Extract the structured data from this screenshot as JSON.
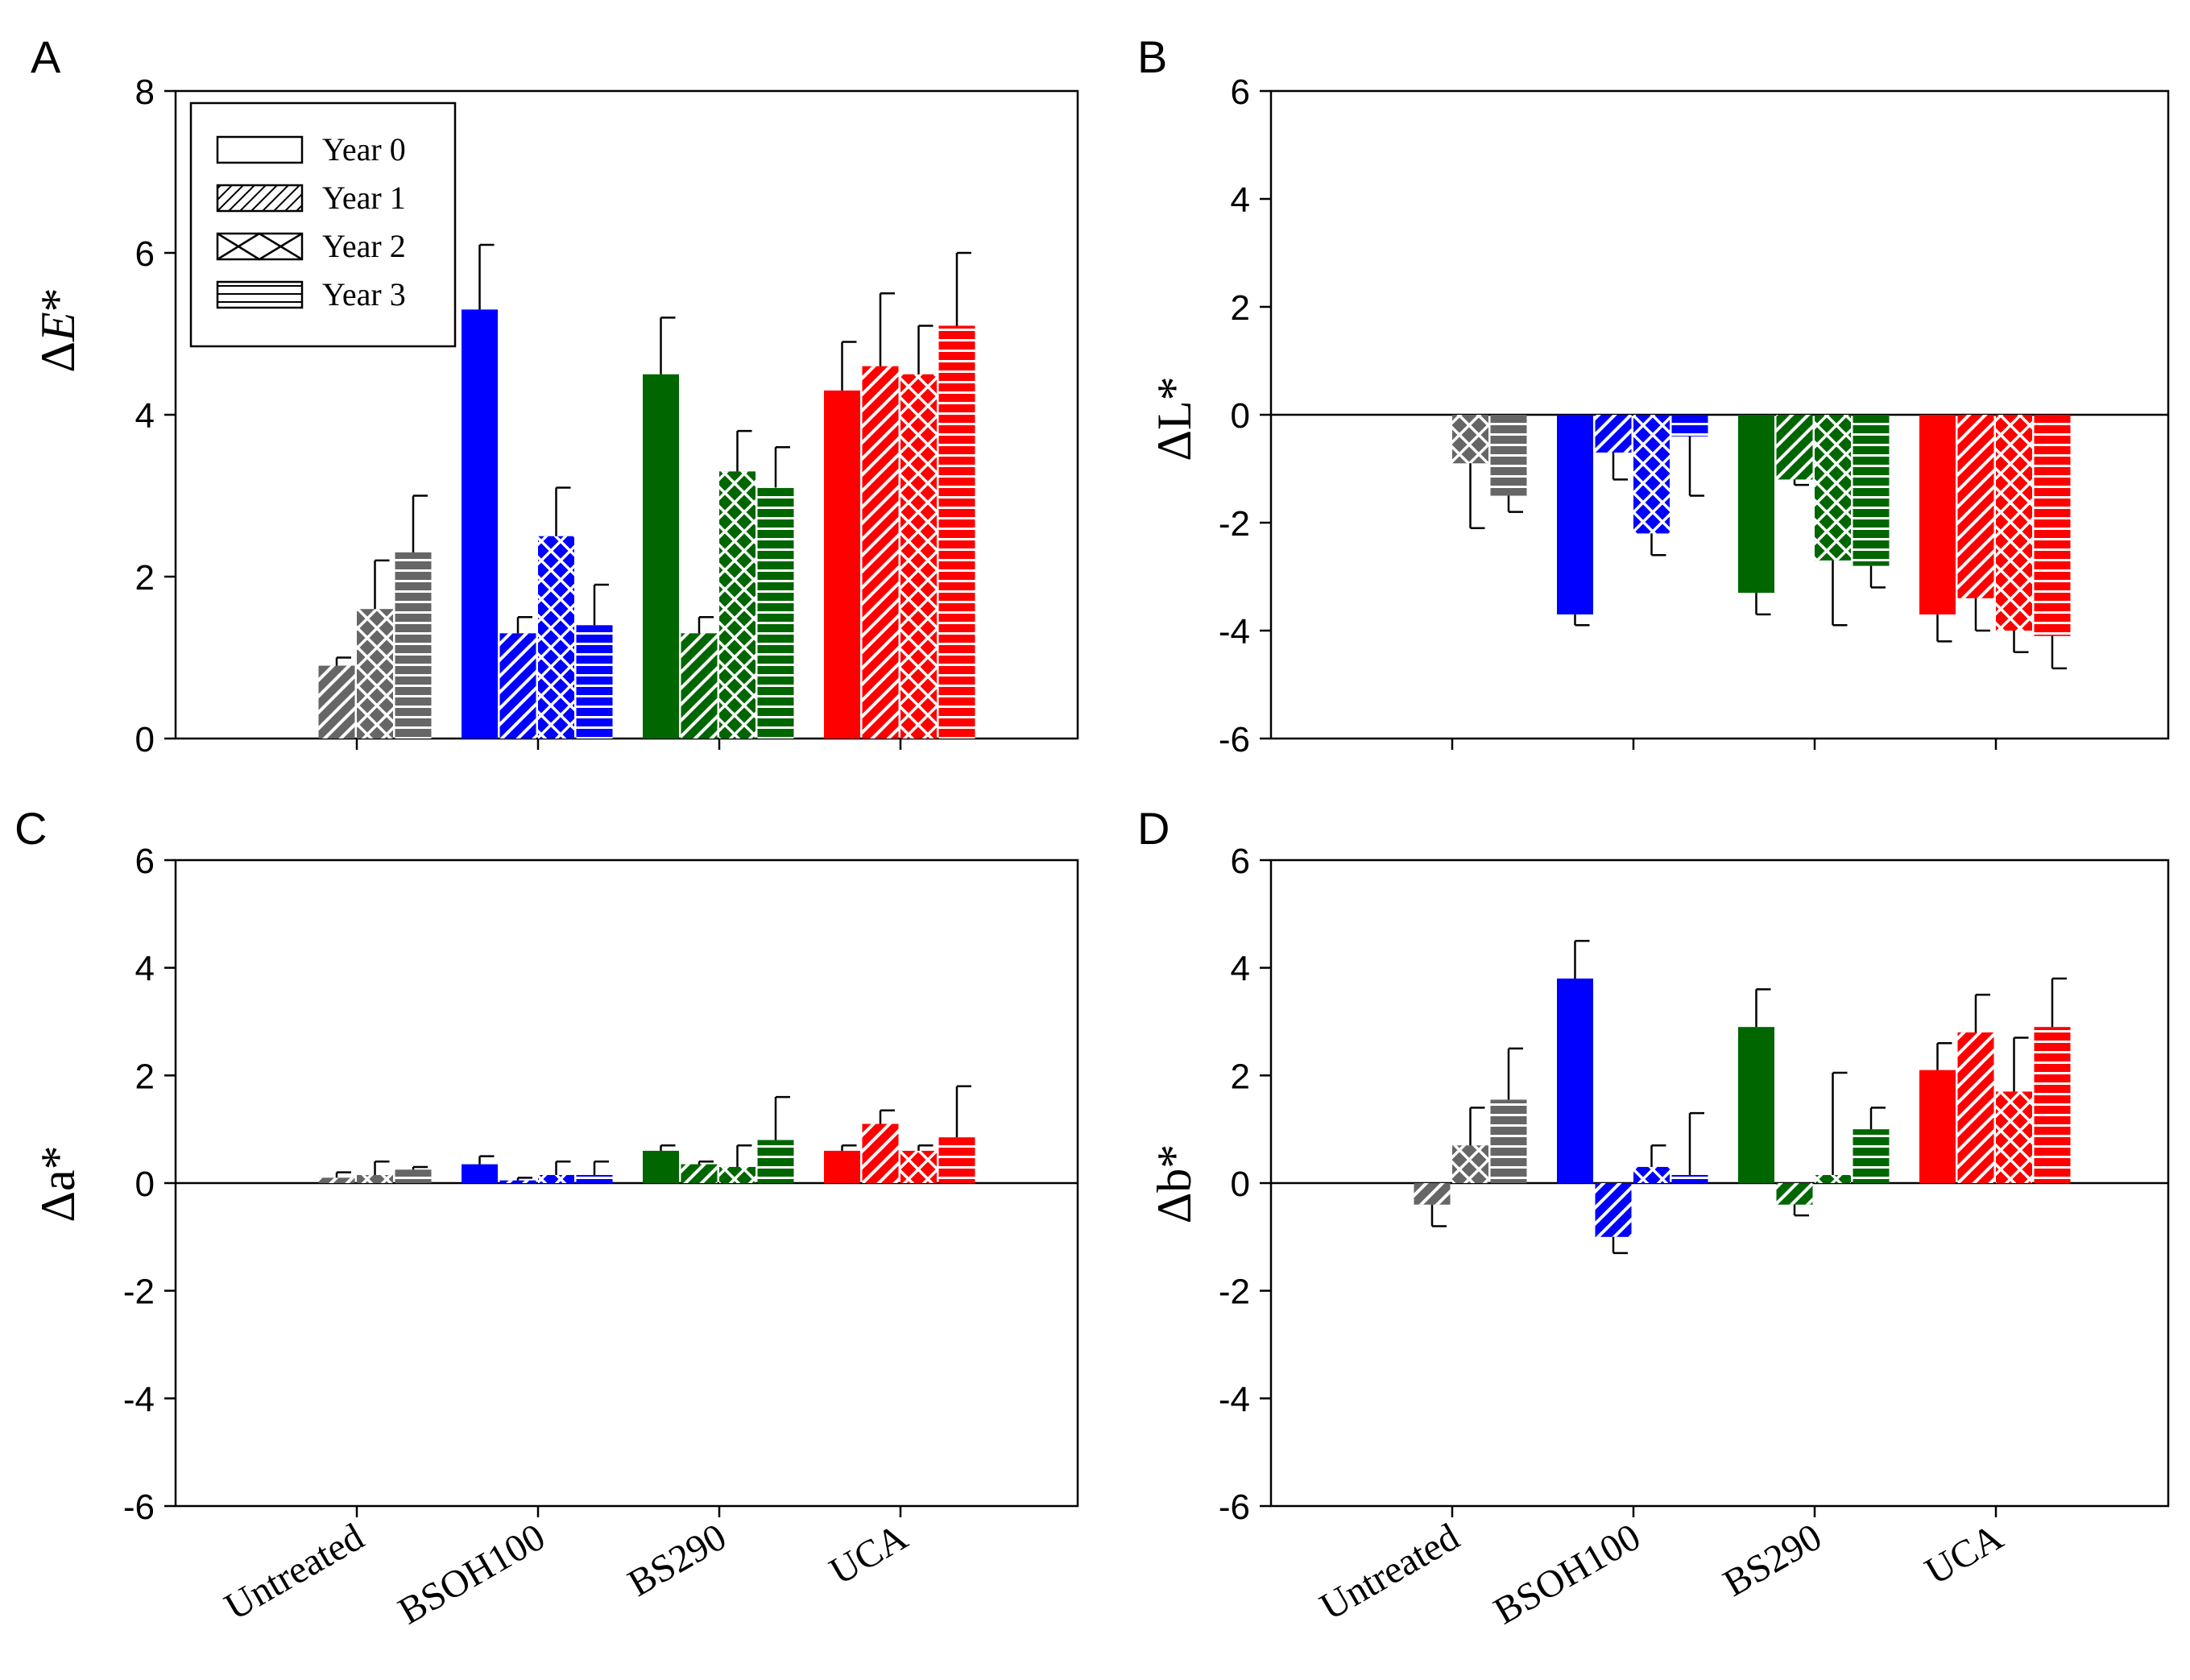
{
  "chart_data": [
    {
      "panel": "A",
      "type": "bar",
      "ylabel": "ΔE*",
      "ylabel_prefix": "Δ",
      "ylabel_italic": "E",
      "ylabel_suffix": "*",
      "ylim": [
        0,
        8
      ],
      "yticks": [
        0,
        2,
        4,
        6,
        8
      ],
      "categories": [
        "Untreated",
        "BSOH100",
        "BS290",
        "UCA"
      ],
      "category_colors": [
        "#666666",
        "#0000ff",
        "#006600",
        "#ff0000"
      ],
      "zero_line": false,
      "series": [
        {
          "name": "Year 0",
          "values": [
            null,
            5.3,
            4.5,
            4.3
          ],
          "errors": [
            null,
            0.8,
            0.7,
            0.6
          ]
        },
        {
          "name": "Year 1",
          "values": [
            0.9,
            1.3,
            1.3,
            4.6
          ],
          "errors": [
            0.1,
            0.2,
            0.2,
            0.9
          ]
        },
        {
          "name": "Year 2",
          "values": [
            1.6,
            2.5,
            3.3,
            4.5
          ],
          "errors": [
            0.6,
            0.6,
            0.5,
            0.6
          ]
        },
        {
          "name": "Year 3",
          "values": [
            2.3,
            1.4,
            3.1,
            5.1
          ],
          "errors": [
            0.7,
            0.5,
            0.5,
            0.9
          ]
        }
      ],
      "legend": {
        "placement": "top-left",
        "entries": [
          "Year 0",
          "Year 1",
          "Year 2",
          "Year 3"
        ]
      }
    },
    {
      "panel": "B",
      "type": "bar",
      "ylabel": "ΔL*",
      "ylim": [
        -6,
        6
      ],
      "yticks": [
        -6,
        -4,
        -2,
        0,
        2,
        4,
        6
      ],
      "categories": [
        "Untreated",
        "BSOH100",
        "BS290",
        "UCA"
      ],
      "category_colors": [
        "#666666",
        "#0000ff",
        "#006600",
        "#ff0000"
      ],
      "zero_line": true,
      "series": [
        {
          "name": "Year 0",
          "values": [
            null,
            -3.7,
            -3.3,
            -3.7
          ],
          "errors": [
            null,
            0.2,
            0.4,
            0.5
          ]
        },
        {
          "name": "Year 1",
          "values": [
            null,
            -0.7,
            -1.2,
            -3.4
          ],
          "errors": [
            null,
            0.5,
            0.1,
            0.6
          ]
        },
        {
          "name": "Year 2",
          "values": [
            -0.9,
            -2.2,
            -2.7,
            -4.0
          ],
          "errors": [
            1.2,
            0.4,
            1.2,
            0.4
          ]
        },
        {
          "name": "Year 3",
          "values": [
            -1.5,
            -0.4,
            -2.8,
            -4.1
          ],
          "errors": [
            0.3,
            1.1,
            0.4,
            0.6
          ]
        }
      ]
    },
    {
      "panel": "C",
      "type": "bar",
      "ylabel": "Δa*",
      "ylim": [
        -6,
        6
      ],
      "yticks": [
        -6,
        -4,
        -2,
        0,
        2,
        4,
        6
      ],
      "categories": [
        "Untreated",
        "BSOH100",
        "BS290",
        "UCA"
      ],
      "category_colors": [
        "#666666",
        "#0000ff",
        "#006600",
        "#ff0000"
      ],
      "zero_line": true,
      "series": [
        {
          "name": "Year 0",
          "values": [
            null,
            0.35,
            0.6,
            0.6
          ],
          "errors": [
            null,
            0.15,
            0.1,
            0.1
          ]
        },
        {
          "name": "Year 1",
          "values": [
            0.1,
            0.05,
            0.35,
            1.1
          ],
          "errors": [
            0.1,
            0.05,
            0.05,
            0.25
          ]
        },
        {
          "name": "Year 2",
          "values": [
            0.15,
            0.15,
            0.3,
            0.6
          ],
          "errors": [
            0.25,
            0.25,
            0.4,
            0.1
          ]
        },
        {
          "name": "Year 3",
          "values": [
            0.25,
            0.15,
            0.8,
            0.85
          ],
          "errors": [
            0.05,
            0.25,
            0.8,
            0.95
          ]
        }
      ]
    },
    {
      "panel": "D",
      "type": "bar",
      "ylabel": "Δb*",
      "ylim": [
        -6,
        6
      ],
      "yticks": [
        -6,
        -4,
        -2,
        0,
        2,
        4,
        6
      ],
      "categories": [
        "Untreated",
        "BSOH100",
        "BS290",
        "UCA"
      ],
      "category_colors": [
        "#666666",
        "#0000ff",
        "#006600",
        "#ff0000"
      ],
      "zero_line": true,
      "series": [
        {
          "name": "Year 0",
          "values": [
            null,
            3.8,
            2.9,
            2.1
          ],
          "errors": [
            null,
            0.7,
            0.7,
            0.5
          ]
        },
        {
          "name": "Year 1",
          "values": [
            -0.4,
            -1.0,
            -0.4,
            2.8
          ],
          "errors": [
            0.4,
            0.3,
            0.2,
            0.7
          ]
        },
        {
          "name": "Year 2",
          "values": [
            0.7,
            0.3,
            0.15,
            1.7
          ],
          "errors": [
            0.7,
            0.4,
            1.9,
            1.0
          ]
        },
        {
          "name": "Year 3",
          "values": [
            1.55,
            0.15,
            1.0,
            2.9
          ],
          "errors": [
            0.95,
            1.15,
            0.4,
            0.9
          ]
        }
      ]
    }
  ]
}
